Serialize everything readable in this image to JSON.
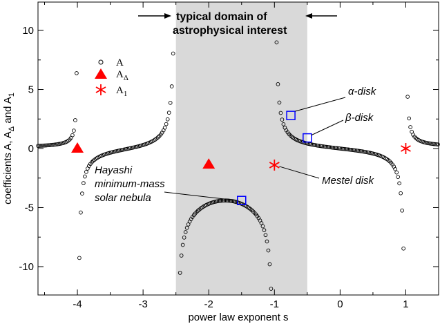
{
  "chart_data": {
    "type": "scatter",
    "title": "",
    "xlabel": "power law exponent s",
    "ylabel": "coefficients A, A_Δ and A_1",
    "xlim": [
      -4.6,
      1.5
    ],
    "ylim": [
      -12.4,
      12.4
    ],
    "x_ticks": [
      -4,
      -3,
      -2,
      -1,
      0,
      1
    ],
    "x_tick_labels": [
      "-4",
      "-3",
      "-2",
      "-1",
      "0",
      "1"
    ],
    "y_ticks": [
      -10,
      -5,
      0,
      5,
      10
    ],
    "y_tick_labels": [
      "-10",
      "-5",
      "0",
      "5",
      "10"
    ],
    "grid": false,
    "legend_position": "upper-left",
    "shaded_region": {
      "x_range": [
        -2.5,
        -0.5
      ],
      "color": "#d9d9d9",
      "label_line1": "typical domain of",
      "label_line2": "astrophysical interest"
    },
    "series": [
      {
        "name": "A",
        "marker": "open-circle",
        "color": "#000000",
        "points": "continuous curve sampled every ~0.02 in s, singular at s = -4, -2.5, -1, 1",
        "sample_values": [
          {
            "x": -4.5,
            "y": 0.2
          },
          {
            "x": -4.1,
            "y": 1.9
          },
          {
            "x": -4.02,
            "y": 11.8
          },
          {
            "x": -3.98,
            "y": -11.0
          },
          {
            "x": -3.5,
            "y": -0.7
          },
          {
            "x": -3.0,
            "y": 0.1
          },
          {
            "x": -2.6,
            "y": 3.0
          },
          {
            "x": -2.4,
            "y": -9.0
          },
          {
            "x": -2.0,
            "y": -5.5
          },
          {
            "x": -1.5,
            "y": -4.4
          },
          {
            "x": -1.1,
            "y": -9.0
          },
          {
            "x": -0.9,
            "y": 7.0
          },
          {
            "x": -0.75,
            "y": 2.8
          },
          {
            "x": -0.5,
            "y": 0.9
          },
          {
            "x": 0.0,
            "y": 0.0
          },
          {
            "x": 0.8,
            "y": -2.8
          },
          {
            "x": 0.98,
            "y": -9.3
          },
          {
            "x": 1.02,
            "y": 8.8
          },
          {
            "x": 1.5,
            "y": 0.3
          }
        ]
      },
      {
        "name": "A_Δ",
        "marker": "filled-triangle",
        "color": "#ff0000",
        "values": [
          {
            "x": -4.0,
            "y": 0.0
          },
          {
            "x": -2.0,
            "y": -1.35
          }
        ]
      },
      {
        "name": "A_1",
        "marker": "asterisk",
        "color": "#ff0000",
        "values": [
          {
            "x": -1.0,
            "y": -1.4
          },
          {
            "x": 1.0,
            "y": 0.0
          }
        ]
      }
    ],
    "highlights": [
      {
        "label": "Hayashi minimum-mass solar nebula",
        "x": -1.5,
        "y": -4.4
      },
      {
        "label": "α-disk",
        "x": -0.75,
        "y": 2.8
      },
      {
        "label": "β-disk",
        "x": -0.5,
        "y": 0.9
      }
    ],
    "annotations": {
      "hayashi": [
        "Hayashi",
        "minimum-mass",
        "solar nebula"
      ],
      "alpha": "α-disk",
      "beta": "β-disk",
      "mestel": "Mestel disk"
    },
    "legend": [
      {
        "symbol": "open-circle",
        "main": "A",
        "sub": ""
      },
      {
        "symbol": "filled-triangle",
        "main": "A",
        "sub": "Δ"
      },
      {
        "symbol": "asterisk",
        "main": "A",
        "sub": "1"
      }
    ],
    "colors": {
      "shade": "#d9d9d9",
      "series_A": "#000000",
      "red_markers": "#ff0000",
      "highlight_box": "#0000ff"
    }
  }
}
